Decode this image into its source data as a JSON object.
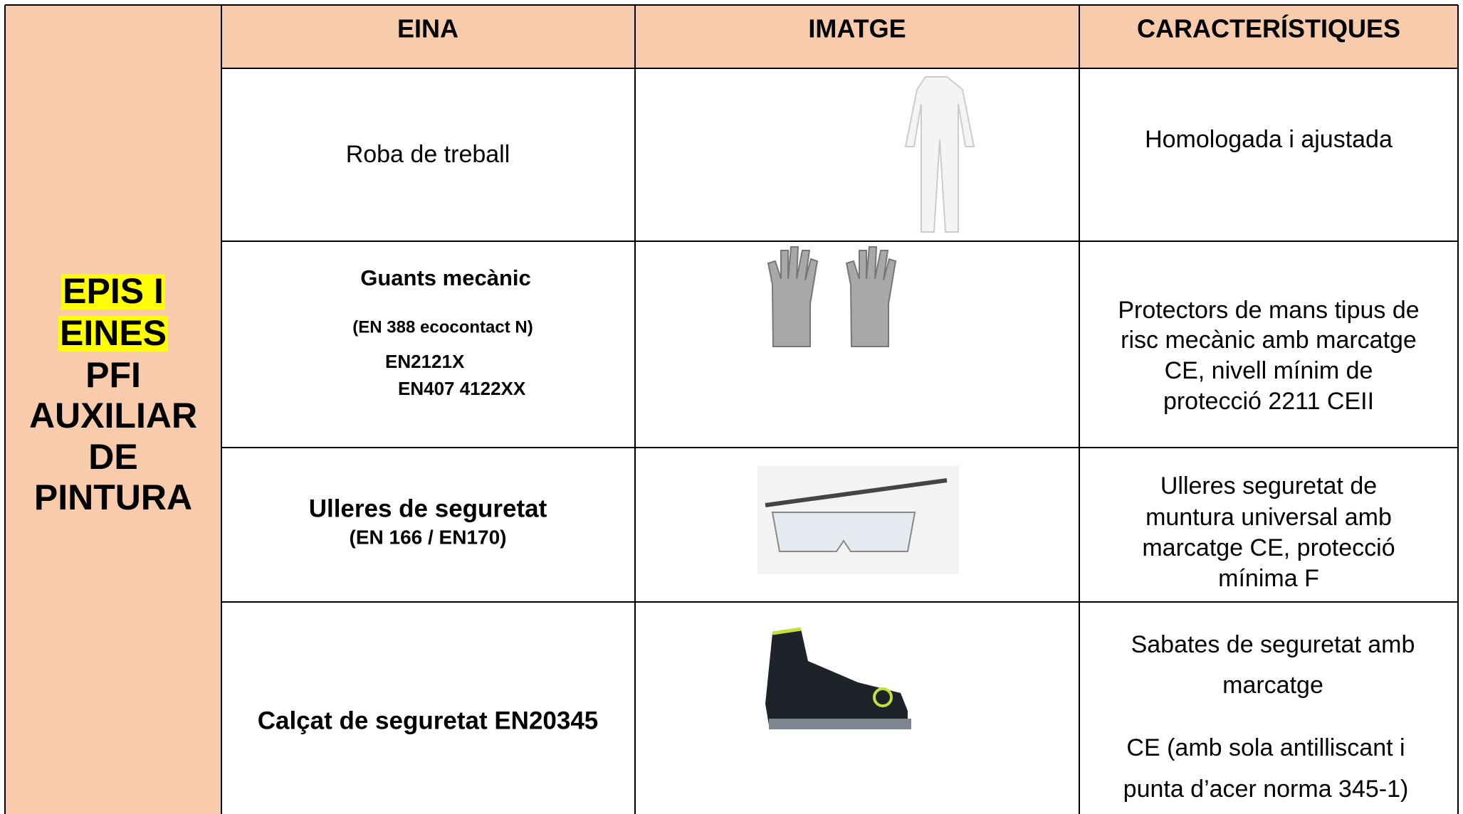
{
  "side_label": {
    "highlighted": [
      "EPIS I",
      "EINES"
    ],
    "lines": [
      "PFI",
      "AUXILIAR",
      "DE",
      "PINTURA"
    ]
  },
  "table": {
    "headers": [
      "EINA",
      "IMATGE",
      "CARACTERÍSTIQUES"
    ],
    "rows": [
      {
        "tool": [
          "Roba de treball"
        ],
        "features": [
          "Homologada i ajustada"
        ]
      },
      {
        "tool": [
          "Guants mecànic",
          "(EN 388 ecocontact N)",
          "EN2121X",
          "EN407 4122XX"
        ],
        "features": [
          "Protectors de mans tipus de",
          "risc mecànic amb marcatge",
          "CE, nivell mínim de",
          "protecció 2211 CEII"
        ]
      },
      {
        "tool": [
          "Ulleres de seguretat",
          "(EN 166 / EN170)"
        ],
        "features": [
          "Ulleres seguretat de",
          "muntura universal amb",
          "marcatge CE, protecció",
          "mínima F"
        ]
      },
      {
        "tool": [
          "Calçat de seguretat EN20345"
        ],
        "features": [
          "Sabates de seguretat amb",
          "marcatge",
          "CE (amb sola antilliscant i",
          "punta d’acer norma 345-1)"
        ]
      }
    ]
  }
}
